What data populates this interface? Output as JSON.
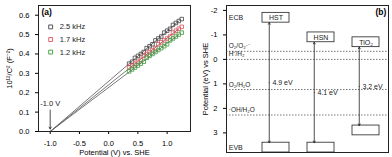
{
  "chart_data": [
    {
      "type": "scatter",
      "panel_label": "(a)",
      "x_label": "Potential (V) vs. SHE",
      "y_label": "10¹²/C² (F⁻²)",
      "xlim": [
        -1.2,
        1.4
      ],
      "ylim": [
        0,
        0.65
      ],
      "xticks": [
        {
          "value": -1,
          "label": "-1.0"
        },
        {
          "value": -0.5,
          "label": "-0.5"
        },
        {
          "value": 0,
          "label": "0.0"
        },
        {
          "value": 0.5,
          "label": "0.5"
        },
        {
          "value": 1,
          "label": "1.0"
        }
      ],
      "yticks": [
        {
          "value": 0,
          "label": "0.0"
        },
        {
          "value": 0.1,
          "label": "0.1"
        },
        {
          "value": 0.2,
          "label": "0.2"
        },
        {
          "value": 0.3,
          "label": "0.3"
        },
        {
          "value": 0.4,
          "label": "0.4"
        },
        {
          "value": 0.5,
          "label": "0.5"
        },
        {
          "value": 0.6,
          "label": "0.6"
        }
      ],
      "marker": "square",
      "legend": "top-left",
      "x": [
        0.35,
        0.4,
        0.45,
        0.5,
        0.55,
        0.6,
        0.65,
        0.7,
        0.75,
        0.8,
        0.85,
        0.9,
        0.95,
        1.0,
        1.05,
        1.1,
        1.15,
        1.2,
        1.25
      ],
      "series": [
        {
          "name": "2.5 kHz",
          "color": "#444444",
          "values": [
            0.35,
            0.36,
            0.38,
            0.39,
            0.4,
            0.41,
            0.43,
            0.44,
            0.45,
            0.47,
            0.48,
            0.49,
            0.51,
            0.52,
            0.53,
            0.55,
            0.56,
            0.57,
            0.58
          ],
          "fit": {
            "x": [
              -1.0,
              1.2
            ],
            "values": [
              0,
              0.57
            ]
          }
        },
        {
          "name": "1.7 kHz",
          "color": "#e0505a",
          "values": [
            0.33,
            0.34,
            0.35,
            0.36,
            0.37,
            0.39,
            0.4,
            0.41,
            0.42,
            0.43,
            0.45,
            0.46,
            0.47,
            0.48,
            0.49,
            0.51,
            0.52,
            0.53,
            0.54
          ],
          "fit": {
            "x": [
              -1.0,
              1.2
            ],
            "values": [
              0,
              0.53
            ]
          }
        },
        {
          "name": "1.2 kHz",
          "color": "#3a9a3a",
          "values": [
            0.31,
            0.32,
            0.33,
            0.34,
            0.35,
            0.36,
            0.38,
            0.39,
            0.4,
            0.41,
            0.42,
            0.43,
            0.44,
            0.45,
            0.47,
            0.48,
            0.49,
            0.5,
            0.51
          ],
          "fit": {
            "x": [
              -1.0,
              1.2
            ],
            "values": [
              0,
              0.5
            ]
          }
        }
      ],
      "annotations": [
        {
          "text": "-1.0 V",
          "x": -1.0,
          "y": 0
        }
      ]
    },
    {
      "type": "band_diagram",
      "panel_label": "(b)",
      "y_label": "Potential (eV) vs SHE",
      "ylim": [
        -2.2,
        3.8
      ],
      "yticks": [
        -2,
        -1,
        0,
        1,
        2,
        3
      ],
      "tick_labels": "y",
      "categories": [
        "HST",
        "HSN",
        "TiO₂"
      ],
      "conduction_band": [
        -1.5,
        -0.7,
        -0.5
      ],
      "valence_band": [
        3.4,
        3.4,
        2.7
      ],
      "gap_labels": [
        "4.9 eV",
        "4.1 eV",
        "3.2 eV"
      ],
      "band_labels": {
        "conduction": "ECB",
        "valence": "EVB"
      },
      "redox": [
        {
          "label": "O₂/O₂·⁻",
          "value": -0.33
        },
        {
          "label": "H⁺/H₂",
          "value": 0
        },
        {
          "label": "O₂/H₂O",
          "value": 1.23
        },
        {
          "label": "·OH/H₂O",
          "value": 2.27
        }
      ]
    }
  ]
}
